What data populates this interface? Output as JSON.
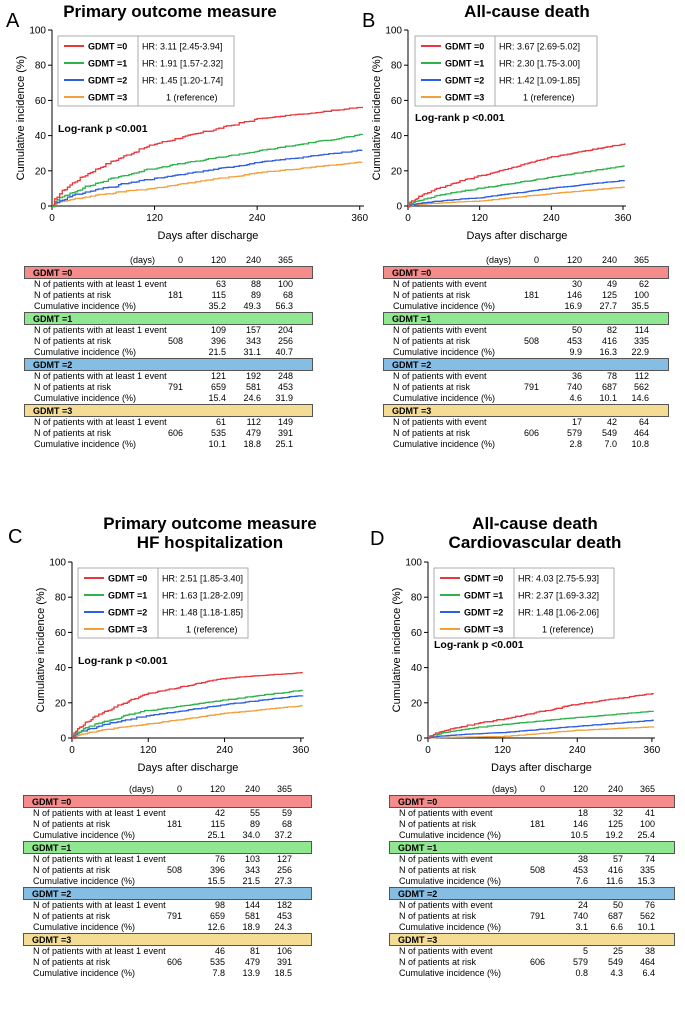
{
  "colors": {
    "g0": "#e8383d",
    "g1": "#2db34a",
    "g2": "#2e5fe0",
    "g3": "#f2a13a",
    "g0bg": "#f58b8b",
    "g1bg": "#8fe88f",
    "g2bg": "#86bde3",
    "g3bg": "#f5dc95"
  },
  "days_label": "(days)",
  "days": [
    "0",
    "120",
    "240",
    "365"
  ],
  "panels": [
    {
      "letter": "A",
      "title": [
        "Primary outcome measure"
      ],
      "legend": [
        {
          "label": "GDMT =0",
          "hr": "HR: 3.11 [2.45-3.94]"
        },
        {
          "label": "GDMT =1",
          "hr": "HR: 1.91 [1.57-2.32]"
        },
        {
          "label": "GDMT =2",
          "hr": "HR: 1.45 [1.20-1.74]"
        },
        {
          "label": "GDMT =3",
          "hr": "1 (reference)"
        }
      ],
      "logrank": "Log-rank p <0.001",
      "risk_groups": [
        {
          "name": "GDMT =0",
          "rows": [
            {
              "label": "N of patients with at least 1 event",
              "v": [
                "",
                "63",
                "88",
                "100"
              ]
            },
            {
              "label": "N of patients at risk",
              "v": [
                "181",
                "115",
                "89",
                "68"
              ]
            },
            {
              "label": "Cumulative incidence (%)",
              "v": [
                "",
                "35.2",
                "49.3",
                "56.3"
              ]
            }
          ]
        },
        {
          "name": "GDMT =1",
          "rows": [
            {
              "label": "N of patients with at least 1 event",
              "v": [
                "",
                "109",
                "157",
                "204"
              ]
            },
            {
              "label": "N of patients at risk",
              "v": [
                "508",
                "396",
                "343",
                "256"
              ]
            },
            {
              "label": "Cumulative incidence (%)",
              "v": [
                "",
                "21.5",
                "31.1",
                "40.7"
              ]
            }
          ]
        },
        {
          "name": "GDMT =2",
          "rows": [
            {
              "label": "N of patients with at least 1 event",
              "v": [
                "",
                "121",
                "192",
                "248"
              ]
            },
            {
              "label": "N of patients at risk",
              "v": [
                "791",
                "659",
                "581",
                "453"
              ]
            },
            {
              "label": "Cumulative incidence (%)",
              "v": [
                "",
                "15.4",
                "24.6",
                "31.9"
              ]
            }
          ]
        },
        {
          "name": "GDMT =3",
          "rows": [
            {
              "label": "N of patients with at least 1 event",
              "v": [
                "",
                "61",
                "112",
                "149"
              ]
            },
            {
              "label": "N of patients at risk",
              "v": [
                "606",
                "535",
                "479",
                "391"
              ]
            },
            {
              "label": "Cumulative incidence (%)",
              "v": [
                "",
                "10.1",
                "18.8",
                "25.1"
              ]
            }
          ]
        }
      ]
    },
    {
      "letter": "B",
      "title": [
        "All-cause death"
      ],
      "legend": [
        {
          "label": "GDMT =0",
          "hr": "HR: 3.67 [2.69-5.02]"
        },
        {
          "label": "GDMT =1",
          "hr": "HR: 2.30 [1.75-3.00]"
        },
        {
          "label": "GDMT =2",
          "hr": "HR: 1.42 [1.09-1.85]"
        },
        {
          "label": "GDMT =3",
          "hr": "1 (reference)"
        }
      ],
      "logrank": "Log-rank p <0.001",
      "risk_groups": [
        {
          "name": "GDMT =0",
          "rows": [
            {
              "label": "N of patients with event",
              "v": [
                "",
                "30",
                "49",
                "62"
              ]
            },
            {
              "label": "N of patients at risk",
              "v": [
                "181",
                "146",
                "125",
                "100"
              ]
            },
            {
              "label": "Cumulative incidence (%)",
              "v": [
                "",
                "16.9",
                "27.7",
                "35.5"
              ]
            }
          ]
        },
        {
          "name": "GDMT =1",
          "rows": [
            {
              "label": "N of patients with event",
              "v": [
                "",
                "50",
                "82",
                "114"
              ]
            },
            {
              "label": "N of patients at risk",
              "v": [
                "508",
                "453",
                "416",
                "335"
              ]
            },
            {
              "label": "Cumulative incidence (%)",
              "v": [
                "",
                "9.9",
                "16.3",
                "22.9"
              ]
            }
          ]
        },
        {
          "name": "GDMT =2",
          "rows": [
            {
              "label": "N of patients with event",
              "v": [
                "",
                "36",
                "78",
                "112"
              ]
            },
            {
              "label": "N of patients at risk",
              "v": [
                "791",
                "740",
                "687",
                "562"
              ]
            },
            {
              "label": "Cumulative incidence (%)",
              "v": [
                "",
                "4.6",
                "10.1",
                "14.6"
              ]
            }
          ]
        },
        {
          "name": "GDMT =3",
          "rows": [
            {
              "label": "N of patients with event",
              "v": [
                "",
                "17",
                "42",
                "64"
              ]
            },
            {
              "label": "N of patients at risk",
              "v": [
                "606",
                "579",
                "549",
                "464"
              ]
            },
            {
              "label": "Cumulative incidence (%)",
              "v": [
                "",
                "2.8",
                "7.0",
                "10.8"
              ]
            }
          ]
        }
      ]
    },
    {
      "letter": "C",
      "title": [
        "Primary outcome measure",
        "HF hospitalization"
      ],
      "legend": [
        {
          "label": "GDMT =0",
          "hr": "HR: 2.51 [1.85-3.40]"
        },
        {
          "label": "GDMT =1",
          "hr": "HR: 1.63 [1.28-2.09]"
        },
        {
          "label": "GDMT =2",
          "hr": "HR: 1.48 [1.18-1.85]"
        },
        {
          "label": "GDMT =3",
          "hr": "1 (reference)"
        }
      ],
      "logrank": "Log-rank p <0.001",
      "risk_groups": [
        {
          "name": "GDMT =0",
          "rows": [
            {
              "label": "N of patients with at least 1 event",
              "v": [
                "",
                "42",
                "55",
                "59"
              ]
            },
            {
              "label": "N of patients at risk",
              "v": [
                "181",
                "115",
                "89",
                "68"
              ]
            },
            {
              "label": "Cumulative incidence (%)",
              "v": [
                "",
                "25.1",
                "34.0",
                "37.2"
              ]
            }
          ]
        },
        {
          "name": "GDMT =1",
          "rows": [
            {
              "label": "N of patients with at least 1 event",
              "v": [
                "",
                "76",
                "103",
                "127"
              ]
            },
            {
              "label": "N of patients at risk",
              "v": [
                "508",
                "396",
                "343",
                "256"
              ]
            },
            {
              "label": "Cumulative incidence (%)",
              "v": [
                "",
                "15.5",
                "21.5",
                "27.3"
              ]
            }
          ]
        },
        {
          "name": "GDMT =2",
          "rows": [
            {
              "label": "N of patients with at least 1 event",
              "v": [
                "",
                "98",
                "144",
                "182"
              ]
            },
            {
              "label": "N of patients at risk",
              "v": [
                "791",
                "659",
                "581",
                "453"
              ]
            },
            {
              "label": "Cumulative incidence (%)",
              "v": [
                "",
                "12.6",
                "18.9",
                "24.3"
              ]
            }
          ]
        },
        {
          "name": "GDMT =3",
          "rows": [
            {
              "label": "N of patients with at least 1 event",
              "v": [
                "",
                "46",
                "81",
                "106"
              ]
            },
            {
              "label": "N of patients at risk",
              "v": [
                "606",
                "535",
                "479",
                "391"
              ]
            },
            {
              "label": "Cumulative incidence (%)",
              "v": [
                "",
                "7.8",
                "13.9",
                "18.5"
              ]
            }
          ]
        }
      ]
    },
    {
      "letter": "D",
      "title": [
        "All-cause death",
        "Cardiovascular death"
      ],
      "legend": [
        {
          "label": "GDMT =0",
          "hr": "HR: 4.03 [2.75-5.93]"
        },
        {
          "label": "GDMT =1",
          "hr": "HR: 2.37 [1.69-3.32]"
        },
        {
          "label": "GDMT =2",
          "hr": "HR: 1.48 [1.06-2.06]"
        },
        {
          "label": "GDMT =3",
          "hr": "1 (reference)"
        }
      ],
      "logrank": "Log-rank p <0.001",
      "risk_groups": [
        {
          "name": "GDMT =0",
          "rows": [
            {
              "label": "N of patients with event",
              "v": [
                "",
                "18",
                "32",
                "41"
              ]
            },
            {
              "label": "N of patients at risk",
              "v": [
                "181",
                "146",
                "125",
                "100"
              ]
            },
            {
              "label": "Cumulative incidence (%)",
              "v": [
                "",
                "10.5",
                "19.2",
                "25.4"
              ]
            }
          ]
        },
        {
          "name": "GDMT =1",
          "rows": [
            {
              "label": "N of patients with event",
              "v": [
                "",
                "38",
                "57",
                "74"
              ]
            },
            {
              "label": "N of patients at risk",
              "v": [
                "508",
                "453",
                "416",
                "335"
              ]
            },
            {
              "label": "Cumulative incidence (%)",
              "v": [
                "",
                "7.6",
                "11.6",
                "15.3"
              ]
            }
          ]
        },
        {
          "name": "GDMT =2",
          "rows": [
            {
              "label": "N of patients with event",
              "v": [
                "",
                "24",
                "50",
                "76"
              ]
            },
            {
              "label": "N of patients at risk",
              "v": [
                "791",
                "740",
                "687",
                "562"
              ]
            },
            {
              "label": "Cumulative incidence (%)",
              "v": [
                "",
                "3.1",
                "6.6",
                "10.1"
              ]
            }
          ]
        },
        {
          "name": "GDMT =3",
          "rows": [
            {
              "label": "N of patients with event",
              "v": [
                "",
                "5",
                "25",
                "38"
              ]
            },
            {
              "label": "N of patients at risk",
              "v": [
                "606",
                "579",
                "549",
                "464"
              ]
            },
            {
              "label": "Cumulative incidence (%)",
              "v": [
                "",
                "0.8",
                "4.3",
                "6.4"
              ]
            }
          ]
        }
      ]
    }
  ],
  "chart_data": [
    {
      "type": "line",
      "title": "Primary outcome measure",
      "xlabel": "Days after discharge",
      "ylabel": "Cumulative incidence (%)",
      "xlim": [
        0,
        365
      ],
      "ylim": [
        0,
        100
      ],
      "xticks": [
        0,
        120,
        240,
        360
      ],
      "yticks": [
        0,
        20,
        40,
        60,
        80,
        100
      ],
      "x": [
        0,
        120,
        240,
        365
      ],
      "series": [
        {
          "name": "GDMT =0",
          "values": [
            0,
            35.2,
            49.3,
            56.3
          ]
        },
        {
          "name": "GDMT =1",
          "values": [
            0,
            21.5,
            31.1,
            40.7
          ]
        },
        {
          "name": "GDMT =2",
          "values": [
            0,
            15.4,
            24.6,
            31.9
          ]
        },
        {
          "name": "GDMT =3",
          "values": [
            0,
            10.1,
            18.8,
            25.1
          ]
        }
      ]
    },
    {
      "type": "line",
      "title": "All-cause death",
      "xlabel": "Days after discharge",
      "ylabel": "Cumulative incidence (%)",
      "xlim": [
        0,
        365
      ],
      "ylim": [
        0,
        100
      ],
      "xticks": [
        0,
        120,
        240,
        360
      ],
      "yticks": [
        0,
        20,
        40,
        60,
        80,
        100
      ],
      "x": [
        0,
        120,
        240,
        365
      ],
      "series": [
        {
          "name": "GDMT =0",
          "values": [
            0,
            16.9,
            27.7,
            35.5
          ]
        },
        {
          "name": "GDMT =1",
          "values": [
            0,
            9.9,
            16.3,
            22.9
          ]
        },
        {
          "name": "GDMT =2",
          "values": [
            0,
            4.6,
            10.1,
            14.6
          ]
        },
        {
          "name": "GDMT =3",
          "values": [
            0,
            2.8,
            7.0,
            10.8
          ]
        }
      ]
    },
    {
      "type": "line",
      "title": "Primary outcome measure HF hospitalization",
      "xlabel": "Days after discharge",
      "ylabel": "Cumulative incidence (%)",
      "xlim": [
        0,
        365
      ],
      "ylim": [
        0,
        100
      ],
      "xticks": [
        0,
        120,
        240,
        360
      ],
      "yticks": [
        0,
        20,
        40,
        60,
        80,
        100
      ],
      "x": [
        0,
        120,
        240,
        365
      ],
      "series": [
        {
          "name": "GDMT =0",
          "values": [
            0,
            25.1,
            34.0,
            37.2
          ]
        },
        {
          "name": "GDMT =1",
          "values": [
            0,
            15.5,
            21.5,
            27.3
          ]
        },
        {
          "name": "GDMT =2",
          "values": [
            0,
            12.6,
            18.9,
            24.3
          ]
        },
        {
          "name": "GDMT =3",
          "values": [
            0,
            7.8,
            13.9,
            18.5
          ]
        }
      ]
    },
    {
      "type": "line",
      "title": "All-cause death Cardiovascular death",
      "xlabel": "Days after discharge",
      "ylabel": "Cumulative incidence (%)",
      "xlim": [
        0,
        365
      ],
      "ylim": [
        0,
        100
      ],
      "xticks": [
        0,
        120,
        240,
        360
      ],
      "yticks": [
        0,
        20,
        40,
        60,
        80,
        100
      ],
      "x": [
        0,
        120,
        240,
        365
      ],
      "series": [
        {
          "name": "GDMT =0",
          "values": [
            0,
            10.5,
            19.2,
            25.4
          ]
        },
        {
          "name": "GDMT =1",
          "values": [
            0,
            7.6,
            11.6,
            15.3
          ]
        },
        {
          "name": "GDMT =2",
          "values": [
            0,
            3.1,
            6.6,
            10.1
          ]
        },
        {
          "name": "GDMT =3",
          "values": [
            0,
            0.8,
            4.3,
            6.4
          ]
        }
      ]
    }
  ]
}
